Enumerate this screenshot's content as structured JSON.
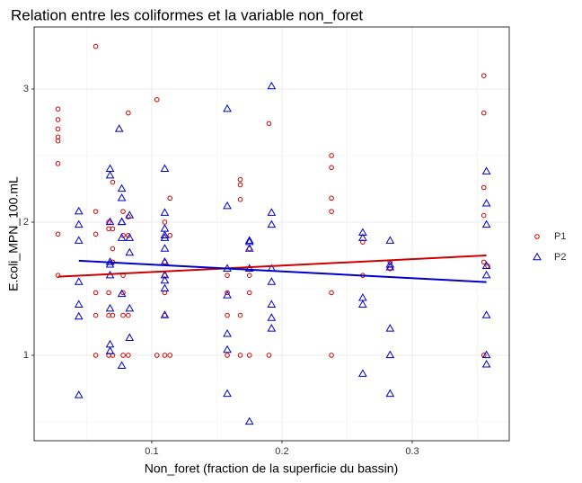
{
  "chart_data": {
    "type": "scatter",
    "title": "Relation entre les coliformes et la variable non_foret",
    "x_label": "Non_foret (fraction de la superficie du bassin)",
    "y_label": "E.coli_MPN_100.mL",
    "xlim": [
      0.0097,
      0.3745
    ],
    "ylim": [
      0.358,
      3.466
    ],
    "xticks": [
      0.1,
      0.2,
      0.3
    ],
    "yticks": [
      1,
      2,
      3
    ],
    "grid": true,
    "legend_position": "right",
    "series": [
      {
        "name": "P1",
        "color": "#cc0000",
        "marker": "circle",
        "x": [
          0.028,
          0.028,
          0.028,
          0.028,
          0.028,
          0.028,
          0.028,
          0.028,
          0.057,
          0.057,
          0.057,
          0.057,
          0.057,
          0.057,
          0.067,
          0.067,
          0.067,
          0.067,
          0.067,
          0.07,
          0.07,
          0.07,
          0.07,
          0.07,
          0.07,
          0.078,
          0.078,
          0.078,
          0.078,
          0.078,
          0.078,
          0.082,
          0.082,
          0.082,
          0.082,
          0.082,
          0.104,
          0.104,
          0.11,
          0.11,
          0.11,
          0.11,
          0.11,
          0.11,
          0.114,
          0.114,
          0.114,
          0.158,
          0.158,
          0.158,
          0.158,
          0.168,
          0.168,
          0.168,
          0.168,
          0.168,
          0.175,
          0.175,
          0.175,
          0.175,
          0.19,
          0.19,
          0.238,
          0.238,
          0.238,
          0.238,
          0.238,
          0.238,
          0.262,
          0.262,
          0.283,
          0.283,
          0.355,
          0.355,
          0.355,
          0.355,
          0.355,
          0.355,
          0.358
        ],
        "values": [
          2.85,
          2.77,
          2.7,
          2.64,
          2.61,
          2.44,
          1.91,
          1.6,
          3.32,
          2.08,
          1.91,
          1.47,
          1.3,
          1.0,
          2.0,
          1.95,
          1.47,
          1.3,
          1.0,
          2.3,
          1.95,
          1.8,
          1.7,
          1.3,
          1.0,
          2.08,
          1.9,
          1.6,
          1.47,
          1.3,
          1.0,
          2.82,
          2.04,
          1.9,
          1.3,
          1.0,
          2.92,
          1.0,
          2.0,
          1.7,
          1.6,
          1.47,
          1.3,
          1.0,
          2.18,
          1.9,
          1.0,
          1.6,
          1.47,
          1.3,
          1.0,
          2.32,
          2.28,
          2.17,
          1.3,
          1.0,
          1.8,
          1.6,
          1.47,
          1.0,
          2.74,
          1.0,
          2.5,
          2.41,
          2.18,
          2.08,
          1.47,
          1.0,
          1.85,
          1.6,
          1.7,
          1.65,
          3.1,
          2.82,
          2.26,
          2.05,
          1.7,
          1.0,
          1.67
        ],
        "trend": {
          "x": [
            0.028,
            0.357
          ],
          "values": [
            1.59,
            1.75
          ]
        }
      },
      {
        "name": "P2",
        "color": "#0000cc",
        "marker": "triangle",
        "x": [
          0.044,
          0.044,
          0.044,
          0.044,
          0.044,
          0.044,
          0.044,
          0.068,
          0.068,
          0.068,
          0.068,
          0.068,
          0.068,
          0.068,
          0.068,
          0.068,
          0.075,
          0.077,
          0.077,
          0.077,
          0.077,
          0.077,
          0.077,
          0.077,
          0.083,
          0.083,
          0.083,
          0.083,
          0.083,
          0.11,
          0.11,
          0.11,
          0.11,
          0.11,
          0.11,
          0.11,
          0.11,
          0.11,
          0.11,
          0.11,
          0.158,
          0.158,
          0.158,
          0.158,
          0.158,
          0.158,
          0.158,
          0.175,
          0.175,
          0.175,
          0.175,
          0.175,
          0.192,
          0.192,
          0.192,
          0.192,
          0.192,
          0.192,
          0.192,
          0.192,
          0.262,
          0.262,
          0.262,
          0.262,
          0.262,
          0.283,
          0.283,
          0.283,
          0.283,
          0.283,
          0.283,
          0.357,
          0.357,
          0.357,
          0.357,
          0.357,
          0.357,
          0.357,
          0.357
        ],
        "values": [
          2.08,
          1.98,
          1.86,
          1.55,
          1.38,
          1.29,
          0.7,
          2.4,
          2.35,
          2.0,
          1.7,
          1.68,
          1.6,
          1.35,
          1.08,
          1.03,
          2.7,
          2.25,
          2.18,
          2.0,
          2.0,
          1.88,
          1.46,
          0.92,
          2.05,
          1.88,
          1.77,
          1.35,
          1.13,
          2.4,
          2.07,
          1.95,
          1.9,
          1.88,
          1.8,
          1.7,
          1.6,
          1.56,
          1.5,
          1.3,
          2.85,
          2.12,
          1.65,
          1.45,
          1.16,
          1.04,
          0.71,
          1.86,
          1.85,
          1.8,
          1.65,
          0.5,
          3.02,
          2.07,
          1.98,
          1.65,
          1.55,
          1.38,
          1.28,
          1.2,
          1.92,
          1.88,
          1.43,
          1.38,
          0.86,
          1.86,
          1.68,
          1.66,
          1.2,
          1.0,
          0.71,
          2.38,
          2.14,
          1.98,
          1.67,
          1.6,
          1.3,
          1.0,
          0.93
        ],
        "trend": {
          "x": [
            0.044,
            0.357
          ],
          "values": [
            1.71,
            1.55
          ]
        }
      }
    ]
  }
}
